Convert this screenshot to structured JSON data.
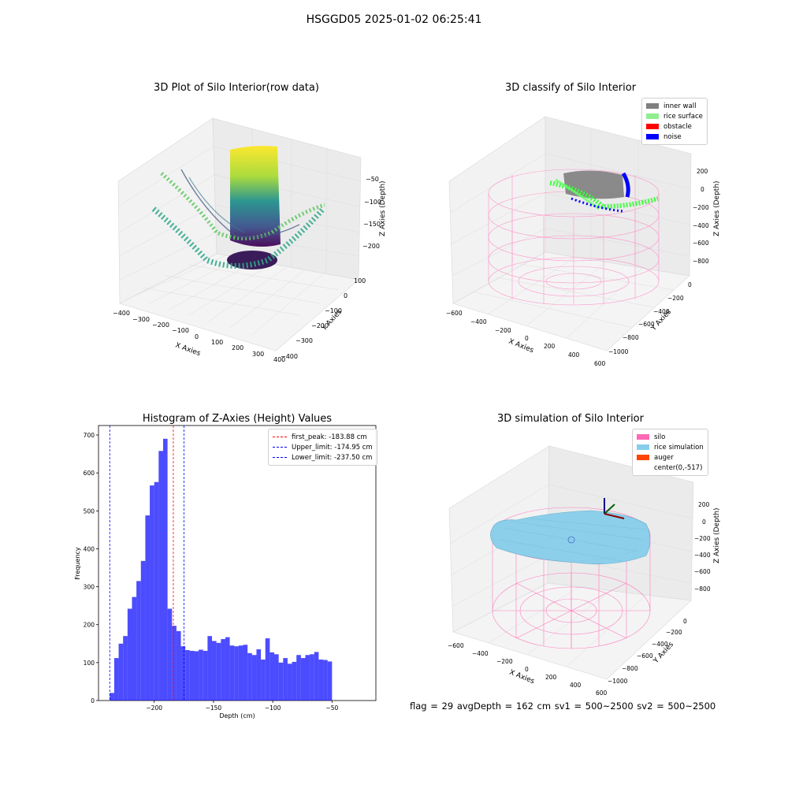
{
  "figure": {
    "suptitle": "HSGGD05 2025-01-02 06:25:41",
    "status_text": "flag = 29  avgDepth = 162 cm  sv1 = 500~2500  sv2 = 500~2500"
  },
  "panel_raw": {
    "title": "3D Plot of Silo Interior(row data)",
    "xlabel": "X Axies",
    "ylabel": "Y Axies",
    "zlabel": "Z Axies (Depth)",
    "xticks": [
      "−400",
      "−300",
      "−200",
      "−100",
      "0",
      "100",
      "200",
      "300",
      "400"
    ],
    "yticks": [
      "100",
      "0",
      "−100",
      "−200",
      "−300",
      "−400"
    ],
    "zticks": [
      "−50",
      "−100",
      "−150",
      "−200"
    ]
  },
  "panel_classify": {
    "title": "3D classify of Silo Interior",
    "xlabel": "X Axies",
    "ylabel": "Y Axies",
    "zlabel": "Z Axies (Depth)",
    "xticks": [
      "−600",
      "−400",
      "−200",
      "0",
      "200",
      "400",
      "600"
    ],
    "yticks": [
      "0",
      "−200",
      "−400",
      "−600",
      "−800",
      "−1000"
    ],
    "zticks": [
      "200",
      "0",
      "−200",
      "−400",
      "−600",
      "−800"
    ],
    "legend": [
      {
        "label": "inner wall",
        "color": "#808080"
      },
      {
        "label": "rice surface",
        "color": "#90ee90"
      },
      {
        "label": "obstacle",
        "color": "#ff0000"
      },
      {
        "label": "noise",
        "color": "#0000ff"
      }
    ]
  },
  "panel_sim": {
    "title": "3D simulation of Silo Interior",
    "xlabel": "X Axies",
    "ylabel": "Y Axies",
    "zlabel": "Z Axies (Depth)",
    "xticks": [
      "−600",
      "−400",
      "−200",
      "0",
      "200",
      "400",
      "600"
    ],
    "yticks": [
      "0",
      "−200",
      "−400",
      "−600",
      "−800",
      "−1000"
    ],
    "zticks": [
      "200",
      "0",
      "−200",
      "−400",
      "−600",
      "−800"
    ],
    "legend": [
      {
        "label": "silo",
        "color": "#ff69b4"
      },
      {
        "label": "rice simulation",
        "color": "#87ceeb"
      },
      {
        "label": "auger",
        "color": "#ff4500"
      },
      {
        "label": "center(0,-517)",
        "color": ""
      }
    ]
  },
  "chart_data": [
    {
      "type": "bar",
      "title": "Histogram of Z-Axies (Height) Values",
      "xlabel": "Depth (cm)",
      "ylabel": "Frequency",
      "xlim": [
        -247,
        -13
      ],
      "ylim": [
        0,
        725
      ],
      "xticks": [
        -200,
        -150,
        -100,
        -50
      ],
      "yticks": [
        0,
        100,
        200,
        300,
        400,
        500,
        600,
        700
      ],
      "bar_color": "#0000ff",
      "bin_start": -237.5,
      "bin_width": 3.75,
      "values": [
        20,
        112,
        150,
        170,
        242,
        273,
        315,
        368,
        488,
        567,
        576,
        658,
        690,
        242,
        197,
        183,
        143,
        133,
        131,
        130,
        134,
        131,
        170,
        157,
        152,
        162,
        167,
        145,
        143,
        145,
        147,
        125,
        120,
        135,
        108,
        164,
        127,
        122,
        100,
        112,
        97,
        102,
        120,
        112,
        120,
        122,
        128,
        108,
        107,
        103
      ],
      "lines": [
        {
          "label": "first_peak: -183.88 cm",
          "x": -183.88,
          "color": "#ff0000"
        },
        {
          "label": "Upper_limit: -174.95 cm",
          "x": -174.95,
          "color": "#0000ff"
        },
        {
          "label": "Lower_limit: -237.50 cm",
          "x": -237.5,
          "color": "#0000ff"
        }
      ],
      "legend_position": "top-right"
    }
  ]
}
